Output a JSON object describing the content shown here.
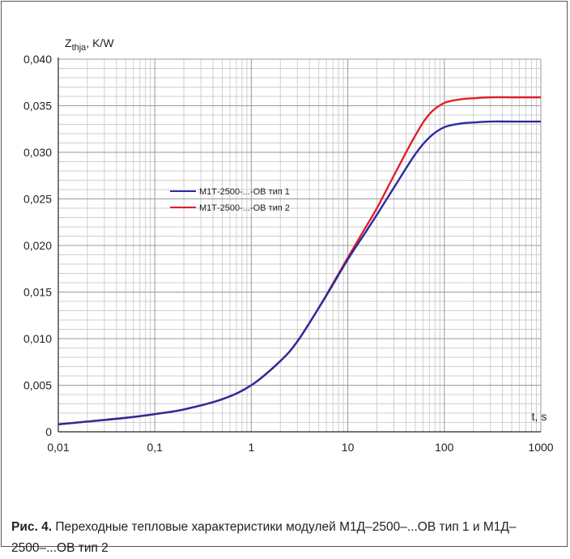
{
  "chart_data": {
    "type": "line",
    "ylabel_main": "Z",
    "ylabel_sub": "thja",
    "ylabel_unit": ", K/W",
    "xlabel": "t, s",
    "x_scale": "log",
    "xlim": [
      0.01,
      1000
    ],
    "ylim": [
      0,
      0.04
    ],
    "x_ticks": [
      0.01,
      0.1,
      1,
      10,
      100,
      1000
    ],
    "x_tick_labels": [
      "0,01",
      "0,1",
      "1",
      "10",
      "100",
      "1000"
    ],
    "y_ticks": [
      0,
      0.005,
      0.01,
      0.015,
      0.02,
      0.025,
      0.03,
      0.035,
      0.04
    ],
    "y_tick_labels": [
      "0",
      "0,005",
      "0,010",
      "0,015",
      "0,020",
      "0,025",
      "0,030",
      "0,035",
      "0,040"
    ],
    "grid": true,
    "legend_position": "center-left",
    "series": [
      {
        "name": "М1Т-2500-...-ОВ тип 1",
        "color": "#2b2b9e",
        "x": [
          0.01,
          0.02,
          0.05,
          0.1,
          0.2,
          0.5,
          1,
          2,
          3,
          5,
          7,
          10,
          15,
          20,
          30,
          50,
          70,
          100,
          150,
          200,
          300,
          500,
          1000
        ],
        "y": [
          0.0008,
          0.0011,
          0.0015,
          0.0019,
          0.0024,
          0.0035,
          0.005,
          0.0076,
          0.0097,
          0.0133,
          0.0158,
          0.0185,
          0.0213,
          0.0233,
          0.0262,
          0.0298,
          0.0316,
          0.0327,
          0.0331,
          0.0332,
          0.0333,
          0.0333,
          0.0333
        ]
      },
      {
        "name": "М1Т-2500-...-ОВ тип 2",
        "color": "#e0202a",
        "x": [
          0.01,
          0.02,
          0.05,
          0.1,
          0.2,
          0.5,
          1,
          2,
          3,
          5,
          7,
          10,
          15,
          20,
          30,
          50,
          70,
          100,
          150,
          200,
          300,
          500,
          1000
        ],
        "y": [
          0.0008,
          0.0011,
          0.0015,
          0.0019,
          0.0024,
          0.0035,
          0.005,
          0.0076,
          0.0097,
          0.0133,
          0.0159,
          0.0187,
          0.0218,
          0.024,
          0.0275,
          0.0318,
          0.0341,
          0.0353,
          0.0357,
          0.0358,
          0.0359,
          0.0359,
          0.0359
        ]
      }
    ]
  },
  "caption": {
    "number": "Рис. 4.",
    "text": "Переходные тепловые характеристики модулей М1Д–2500–...ОВ тип 1 и М1Д–2500–...ОВ тип 2"
  }
}
